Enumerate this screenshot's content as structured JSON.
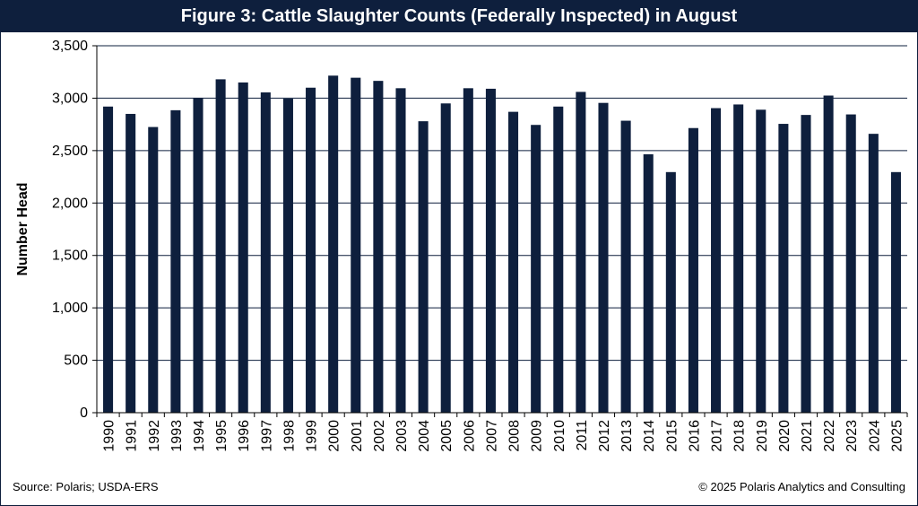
{
  "colors": {
    "bar": "#0e1f3d",
    "grid": "#0e1f3d",
    "header_bg": "#0e1f3d"
  },
  "chart_data": {
    "type": "bar",
    "title": "Figure 3: Cattle Slaughter Counts (Federally Inspected) in August",
    "xlabel": "",
    "ylabel": "Number Head",
    "ylim": [
      0,
      3500
    ],
    "yticks": [
      0,
      500,
      1000,
      1500,
      2000,
      2500,
      3000,
      3500
    ],
    "ytick_labels": [
      "0",
      "500",
      "1,000",
      "1,500",
      "2,000",
      "2,500",
      "3,000",
      "3,500"
    ],
    "grid": true,
    "categories": [
      "1990",
      "1991",
      "1992",
      "1993",
      "1994",
      "1995",
      "1996",
      "1997",
      "1998",
      "1999",
      "2000",
      "2001",
      "2002",
      "2003",
      "2004",
      "2005",
      "2006",
      "2007",
      "2008",
      "2009",
      "2010",
      "2011",
      "2012",
      "2013",
      "2014",
      "2015",
      "2016",
      "2017",
      "2018",
      "2019",
      "2020",
      "2021",
      "2022",
      "2023",
      "2024",
      "2025"
    ],
    "values": [
      2920,
      2850,
      2725,
      2885,
      3000,
      3180,
      3150,
      3055,
      2995,
      3100,
      3215,
      3195,
      3165,
      3095,
      2780,
      2950,
      3095,
      3090,
      2870,
      2745,
      2920,
      3060,
      2955,
      2785,
      2465,
      2295,
      2715,
      2905,
      2940,
      2890,
      2755,
      2840,
      3025,
      2845,
      2660,
      2295
    ]
  },
  "footer": {
    "source": "Source: Polaris; USDA-ERS",
    "copyright": "© 2025 Polaris Analytics and Consulting"
  }
}
